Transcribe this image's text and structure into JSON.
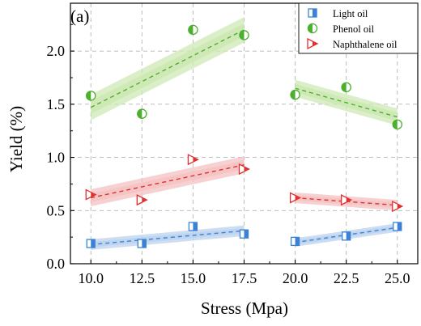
{
  "chart_data": {
    "type": "scatter",
    "panel_label": "(a)",
    "xlabel": "Stress (Mpa)",
    "ylabel": "Yield (%)",
    "xlim": [
      9.0,
      26.0
    ],
    "ylim": [
      0.0,
      2.45
    ],
    "xticks": [
      10.0,
      12.5,
      15.0,
      17.5,
      20.0,
      22.5,
      25.0
    ],
    "xtick_labels": [
      "10.0",
      "12.5",
      "15.0",
      "17.5",
      "20.0",
      "22.5",
      "25.0"
    ],
    "yticks": [
      0.0,
      0.5,
      1.0,
      1.5,
      2.0
    ],
    "ytick_labels": [
      "0.0",
      "0.5",
      "1.0",
      "1.5",
      "2.0"
    ],
    "grid": true,
    "grid_style": "dashed",
    "legend_position": "top-right",
    "series": [
      {
        "name": "Light oil",
        "marker": "half-filled-square",
        "color": "#3b82d6",
        "band_color": "#bcd3ee",
        "points": [
          {
            "x": 10.0,
            "y": 0.19
          },
          {
            "x": 12.5,
            "y": 0.19
          },
          {
            "x": 15.0,
            "y": 0.35
          },
          {
            "x": 17.5,
            "y": 0.28
          },
          {
            "x": 20.0,
            "y": 0.21
          },
          {
            "x": 22.5,
            "y": 0.26
          },
          {
            "x": 25.0,
            "y": 0.35
          }
        ],
        "fits": [
          {
            "x": [
              10.0,
              17.5
            ],
            "y": [
              0.18,
              0.31
            ],
            "band": 0.05
          },
          {
            "x": [
              20.0,
              25.0
            ],
            "y": [
              0.2,
              0.34
            ],
            "band": 0.04
          }
        ]
      },
      {
        "name": "Phenol oil",
        "marker": "half-filled-circle",
        "color": "#4caf2f",
        "band_color": "#cde8b4",
        "points": [
          {
            "x": 10.0,
            "y": 1.58
          },
          {
            "x": 12.5,
            "y": 1.41
          },
          {
            "x": 15.0,
            "y": 2.2
          },
          {
            "x": 17.5,
            "y": 2.15
          },
          {
            "x": 20.0,
            "y": 1.59
          },
          {
            "x": 22.5,
            "y": 1.66
          },
          {
            "x": 25.0,
            "y": 1.31
          }
        ],
        "fits": [
          {
            "x": [
              10.0,
              17.5
            ],
            "y": [
              1.47,
              2.2
            ],
            "band": 0.12
          },
          {
            "x": [
              20.0,
              25.0
            ],
            "y": [
              1.65,
              1.38
            ],
            "band": 0.08
          }
        ]
      },
      {
        "name": "Naphthalene oil",
        "marker": "half-filled-triangle-right",
        "color": "#e03030",
        "band_color": "#f4c2c2",
        "points": [
          {
            "x": 10.0,
            "y": 0.65
          },
          {
            "x": 12.5,
            "y": 0.6
          },
          {
            "x": 15.0,
            "y": 0.98
          },
          {
            "x": 17.5,
            "y": 0.89
          },
          {
            "x": 20.0,
            "y": 0.62
          },
          {
            "x": 22.5,
            "y": 0.6
          },
          {
            "x": 25.0,
            "y": 0.54
          }
        ],
        "fits": [
          {
            "x": [
              10.0,
              17.5
            ],
            "y": [
              0.62,
              0.93
            ],
            "band": 0.08
          },
          {
            "x": [
              20.0,
              25.0
            ],
            "y": [
              0.62,
              0.55
            ],
            "band": 0.05
          }
        ]
      }
    ]
  }
}
